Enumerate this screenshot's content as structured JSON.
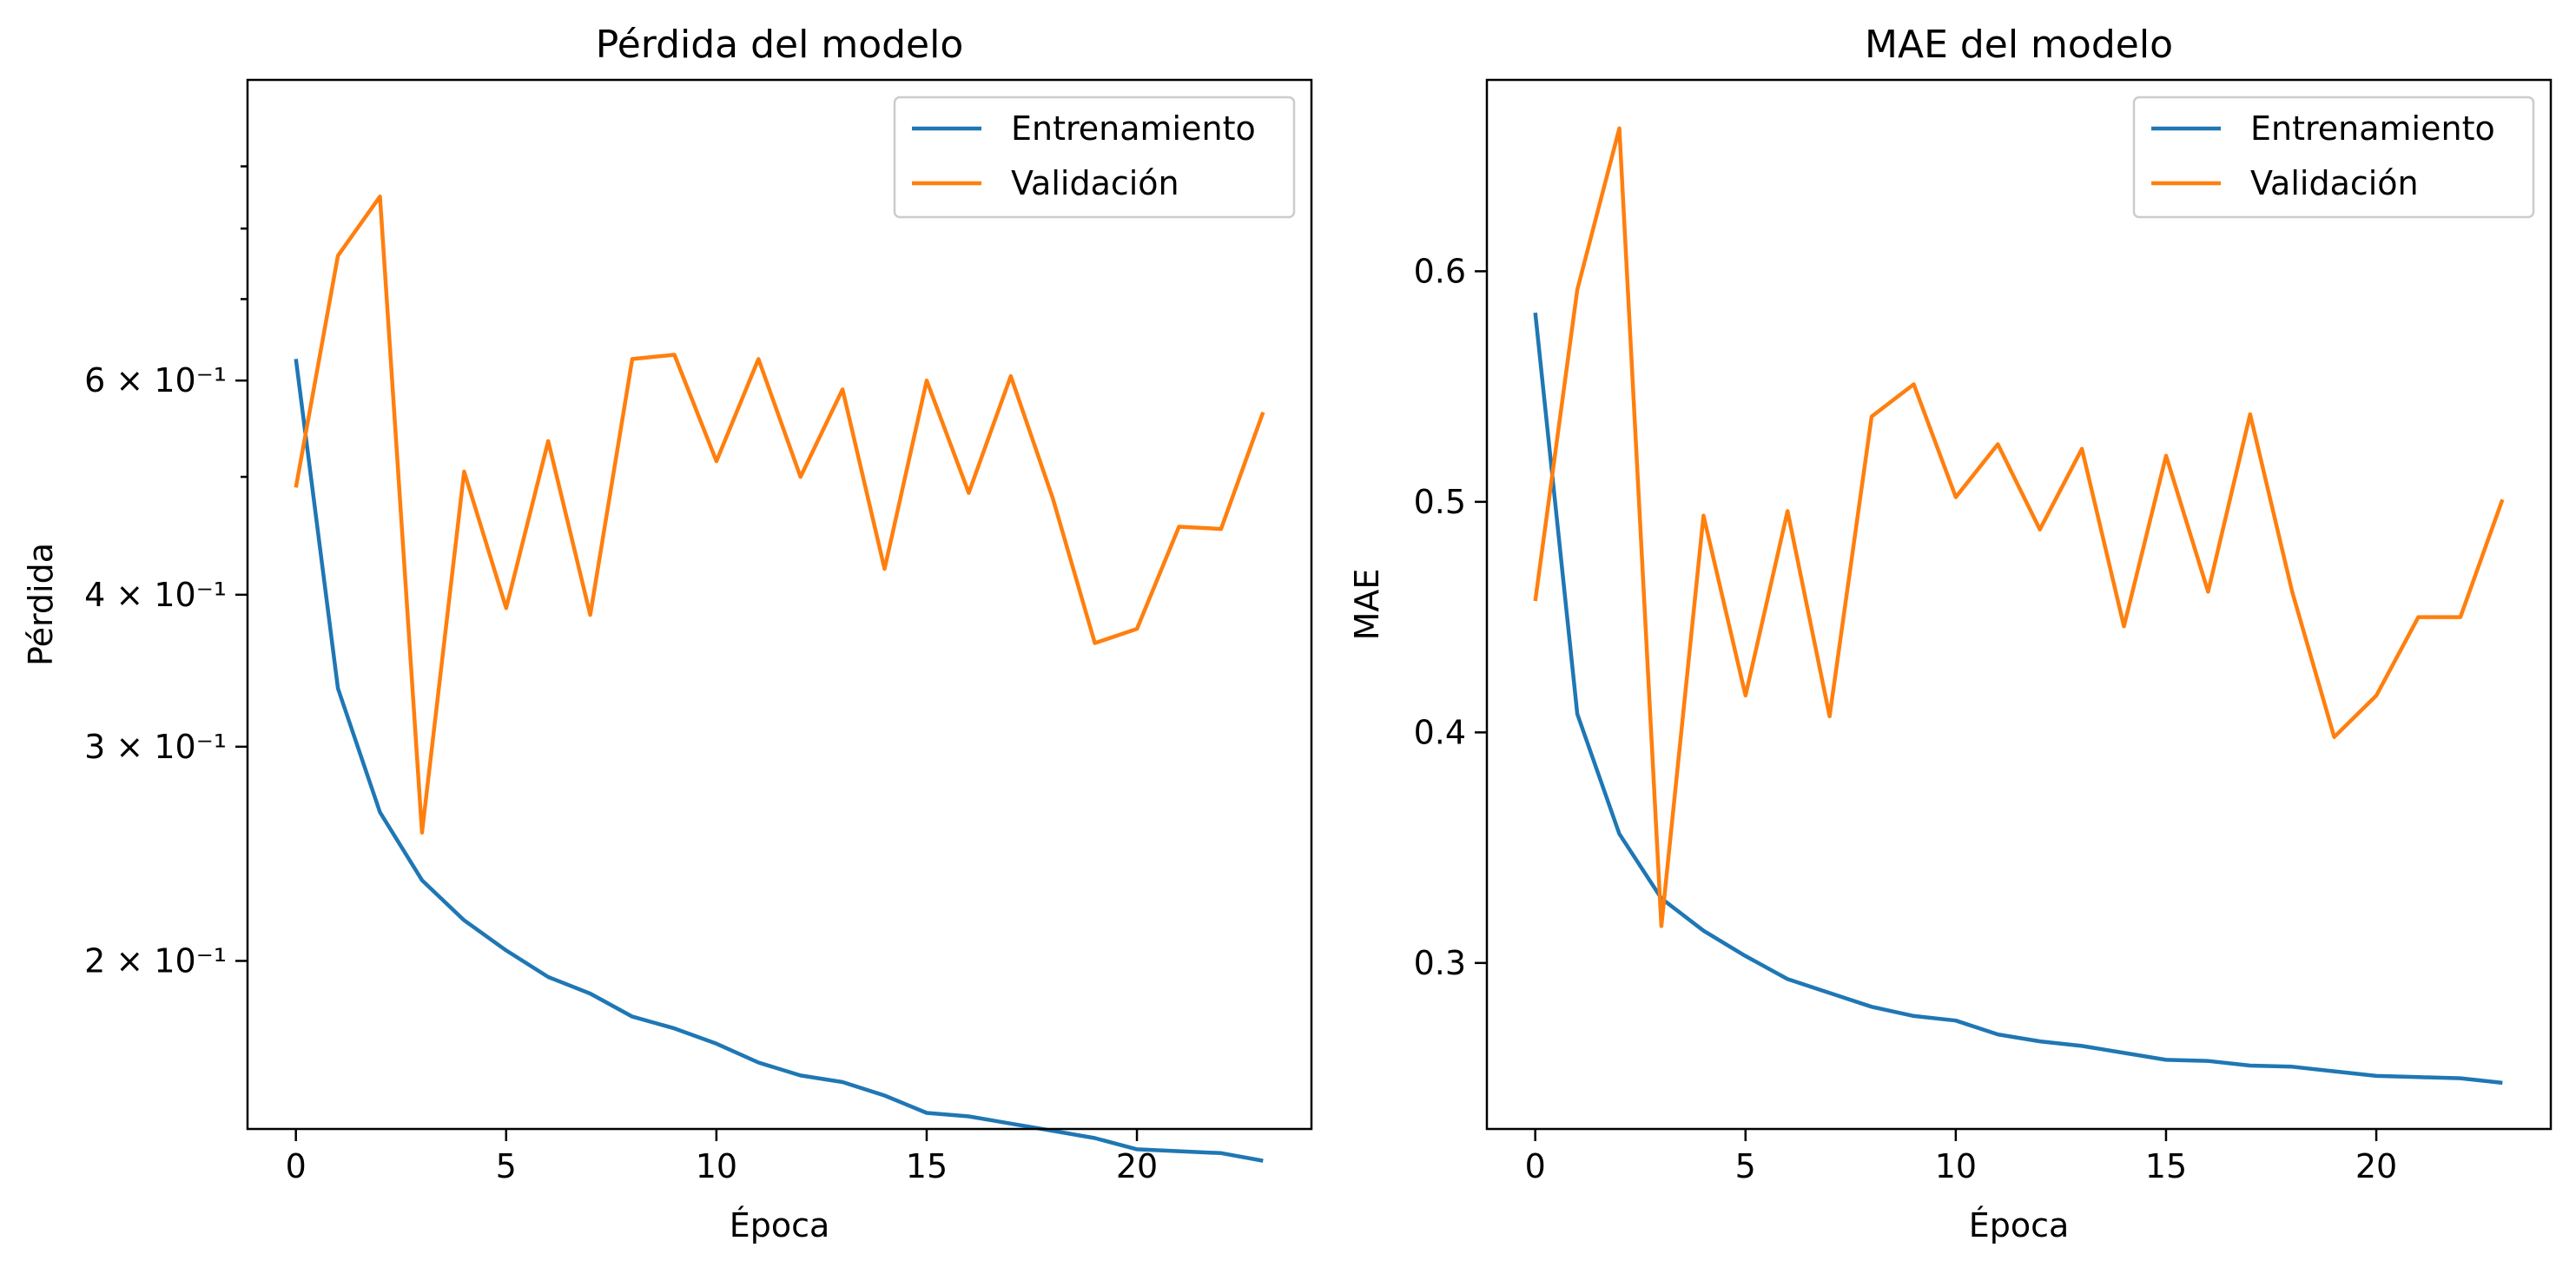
{
  "chart_data": [
    {
      "type": "line",
      "title": "Pérdida del modelo",
      "xlabel": "Época",
      "ylabel": "Pérdida",
      "yscale": "log",
      "xlim": [
        -1.15,
        24.15
      ],
      "ylim": [
        0.1455,
        1.06
      ],
      "xticks": [
        0,
        5,
        10,
        15,
        20
      ],
      "xtick_labels": [
        "0",
        "5",
        "10",
        "15",
        "20"
      ],
      "yticks": [
        0.2,
        0.3,
        0.4,
        0.6
      ],
      "ytick_labels": [
        "2 × 10⁻¹",
        "3 × 10⁻¹",
        "4 × 10⁻¹",
        "6 × 10⁻¹"
      ],
      "yminor_ticks": [
        0.5,
        0.7,
        0.8,
        0.9
      ],
      "legend": "top-right",
      "grid": false,
      "x": [
        0,
        1,
        2,
        3,
        4,
        5,
        6,
        7,
        8,
        9,
        10,
        11,
        12,
        13,
        14,
        15,
        16,
        17,
        18,
        19,
        20,
        21,
        22,
        23
      ],
      "series": [
        {
          "name": "Entrenamiento",
          "color": "#1f77b4",
          "values": [
            0.625,
            0.335,
            0.265,
            0.233,
            0.216,
            0.204,
            0.194,
            0.188,
            0.18,
            0.176,
            0.171,
            0.165,
            0.161,
            0.159,
            0.155,
            0.15,
            0.149,
            0.147,
            0.145,
            0.143,
            0.14,
            0.1395,
            0.139,
            0.137
          ]
        },
        {
          "name": "Validación",
          "color": "#ff7f0e",
          "values": [
            0.49,
            0.76,
            0.85,
            0.255,
            0.505,
            0.39,
            0.535,
            0.385,
            0.625,
            0.63,
            0.515,
            0.625,
            0.5,
            0.59,
            0.42,
            0.6,
            0.485,
            0.605,
            0.48,
            0.365,
            0.375,
            0.455,
            0.453,
            0.565
          ]
        }
      ]
    },
    {
      "type": "line",
      "title": "MAE del modelo",
      "xlabel": "Época",
      "ylabel": "MAE",
      "yscale": "linear",
      "xlim": [
        -1.15,
        24.15
      ],
      "ylim": [
        0.228,
        0.683
      ],
      "xticks": [
        0,
        5,
        10,
        15,
        20
      ],
      "xtick_labels": [
        "0",
        "5",
        "10",
        "15",
        "20"
      ],
      "yticks": [
        0.3,
        0.4,
        0.5,
        0.6
      ],
      "ytick_labels": [
        "0.3",
        "0.4",
        "0.5",
        "0.6"
      ],
      "legend": "top-right",
      "grid": false,
      "x": [
        0,
        1,
        2,
        3,
        4,
        5,
        6,
        7,
        8,
        9,
        10,
        11,
        12,
        13,
        14,
        15,
        16,
        17,
        18,
        19,
        20,
        21,
        22,
        23
      ],
      "series": [
        {
          "name": "Entrenamiento",
          "color": "#1f77b4",
          "values": [
            0.582,
            0.408,
            0.356,
            0.328,
            0.314,
            0.303,
            0.293,
            0.287,
            0.281,
            0.277,
            0.275,
            0.269,
            0.266,
            0.264,
            0.261,
            0.258,
            0.2575,
            0.2555,
            0.255,
            0.253,
            0.251,
            0.2505,
            0.25,
            0.248
          ]
        },
        {
          "name": "Validación",
          "color": "#ff7f0e",
          "values": [
            0.457,
            0.592,
            0.662,
            0.316,
            0.494,
            0.416,
            0.496,
            0.407,
            0.537,
            0.551,
            0.502,
            0.525,
            0.488,
            0.523,
            0.446,
            0.52,
            0.461,
            0.538,
            0.461,
            0.398,
            0.416,
            0.45,
            0.45,
            0.501
          ]
        }
      ]
    }
  ]
}
